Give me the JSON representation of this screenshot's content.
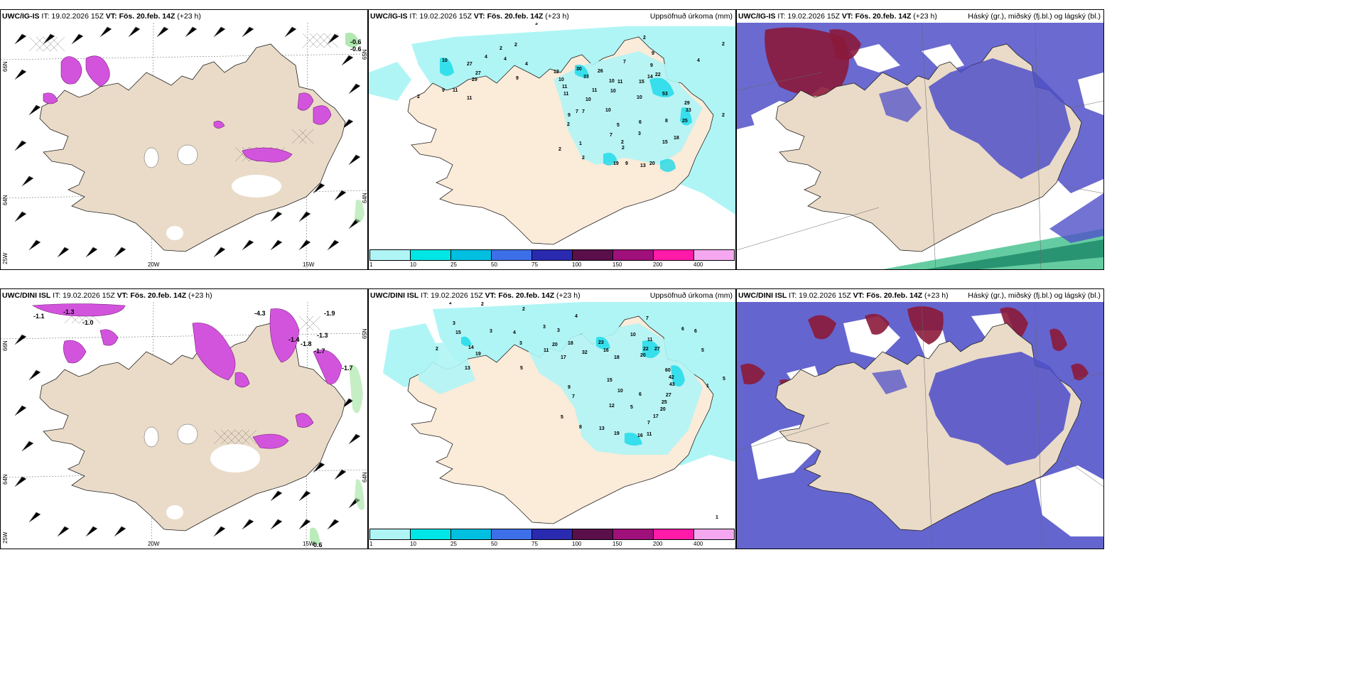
{
  "panels": [
    {
      "model": "UWC/IG-IS",
      "it": "IT: 19.02.2026 15Z",
      "vt_label": "VT:",
      "vt": "Fös. 20.feb. 14Z",
      "lead": "(+23 h)",
      "right_title": ""
    },
    {
      "model": "UWC/IG-IS",
      "it": "IT: 19.02.2026 15Z",
      "vt_label": "VT:",
      "vt": "Fös. 20.feb. 14Z",
      "lead": "(+23 h)",
      "right_title": "Uppsöfnuð úrkoma (mm)"
    },
    {
      "model": "UWC/IG-IS",
      "it": "IT: 19.02.2026 15Z",
      "vt_label": "VT:",
      "vt": "Fös. 20.feb. 14Z",
      "lead": "(+23 h)",
      "right_title": "Háský (gr.), miðský (fj.bl.) og lágský (bl.)"
    },
    {
      "model": "UWC/DINI ISL",
      "it": "IT: 19.02.2026 15Z",
      "vt_label": "VT:",
      "vt": "Fös. 20.feb. 14Z",
      "lead": "(+23 h)",
      "right_title": ""
    },
    {
      "model": "UWC/DINI ISL",
      "it": "IT: 19.02.2026 15Z",
      "vt_label": "VT:",
      "vt": "Fös. 20.feb. 14Z",
      "lead": "(+23 h)",
      "right_title": "Uppsöfnuð úrkoma (mm)"
    },
    {
      "model": "UWC/DINI ISL",
      "it": "IT: 19.02.2026 15Z",
      "vt_label": "VT:",
      "vt": "Fös. 20.feb. 14Z",
      "lead": "(+23 h)",
      "right_title": "Háský (gr.), miðský (fj.bl.) og lágský (bl.)"
    }
  ],
  "axes": {
    "lon_20": "20W",
    "lon_15": "15W",
    "lon_25": "25W",
    "lat_66": "66N",
    "lat_64": "64N",
    "lat_65": "65N"
  },
  "colorbar": {
    "ticks": [
      "1",
      "10",
      "25",
      "50",
      "75",
      "100",
      "150",
      "200",
      "400"
    ],
    "colors": [
      "#b0f5f5",
      "#00e5e5",
      "#00bfe0",
      "#3d6fe8",
      "#2a2ab0",
      "#5a0f4a",
      "#a0107a",
      "#ff1aa8",
      "#f5a8f0"
    ]
  },
  "precip_top": [
    "10",
    "27",
    "29",
    "27",
    "9",
    "11",
    "11",
    "2",
    "2",
    "4",
    "4",
    "2",
    "3",
    "9",
    "4",
    "12",
    "10",
    "11",
    "11",
    "30",
    "33",
    "26",
    "10",
    "11",
    "7",
    "15",
    "14",
    "22",
    "10",
    "9",
    "2",
    "4",
    "9",
    "10",
    "11",
    "53",
    "10",
    "7",
    "9",
    "7",
    "10",
    "8",
    "29",
    "33",
    "25",
    "2",
    "2",
    "5",
    "7",
    "2",
    "1",
    "2",
    "3",
    "6",
    "15",
    "18",
    "2",
    "2",
    "19",
    "9",
    "13",
    "20",
    "2"
  ],
  "precip_bot": [
    "2",
    "2",
    "3",
    "15",
    "19",
    "2",
    "14",
    "13",
    "3",
    "3",
    "4",
    "2",
    "4",
    "5",
    "3",
    "3",
    "20",
    "11",
    "17",
    "18",
    "32",
    "23",
    "16",
    "18",
    "10",
    "22",
    "27",
    "20",
    "7",
    "11",
    "6",
    "6",
    "5",
    "5",
    "60",
    "42",
    "43",
    "27",
    "25",
    "20",
    "17",
    "15",
    "10",
    "6",
    "12",
    "5",
    "13",
    "19",
    "16",
    "11",
    "7",
    "5",
    "8",
    "9",
    "7",
    "1",
    "1"
  ],
  "temp_top": [
    "-0.6",
    "-0.6"
  ],
  "temp_bot": [
    "-1.1",
    "-1.3",
    "-1.0",
    "-4.3",
    "-1.9",
    "-1.8",
    "-1.7",
    "-1.3",
    "-1.4",
    "-1.7",
    "0.6"
  ],
  "bottom_value": "0.6"
}
